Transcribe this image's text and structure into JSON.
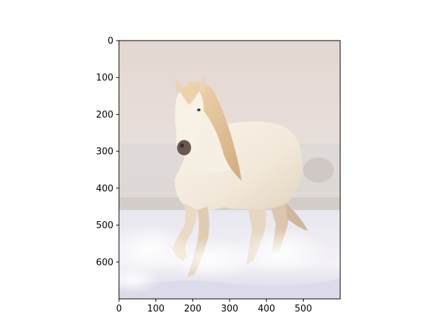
{
  "figure": {
    "image_subject": "white horse galloping through snow",
    "image_x_extent": [
      0,
      600
    ],
    "image_y_extent": [
      700,
      0
    ]
  },
  "axes": {
    "x_ticks": [
      0,
      100,
      200,
      300,
      400,
      500
    ],
    "y_ticks": [
      0,
      100,
      200,
      300,
      400,
      500,
      600
    ],
    "x_tick_labels": [
      "0",
      "100",
      "200",
      "300",
      "400",
      "500"
    ],
    "y_tick_labels": [
      "0",
      "100",
      "200",
      "300",
      "400",
      "500",
      "600"
    ],
    "grid": false
  },
  "colors": {
    "sky_top": "#e3d6d1",
    "sky_mid": "#e8e0dc",
    "haze": "#d8d2cf",
    "snow": "#f4f2f6",
    "snow_shadow": "#cfcfe0",
    "horse_body": "#f3ece0",
    "horse_shade": "#d8c6b0",
    "mane": "#e8cca4",
    "mane_dark": "#c9a27a",
    "muzzle": "#5b4a46"
  }
}
